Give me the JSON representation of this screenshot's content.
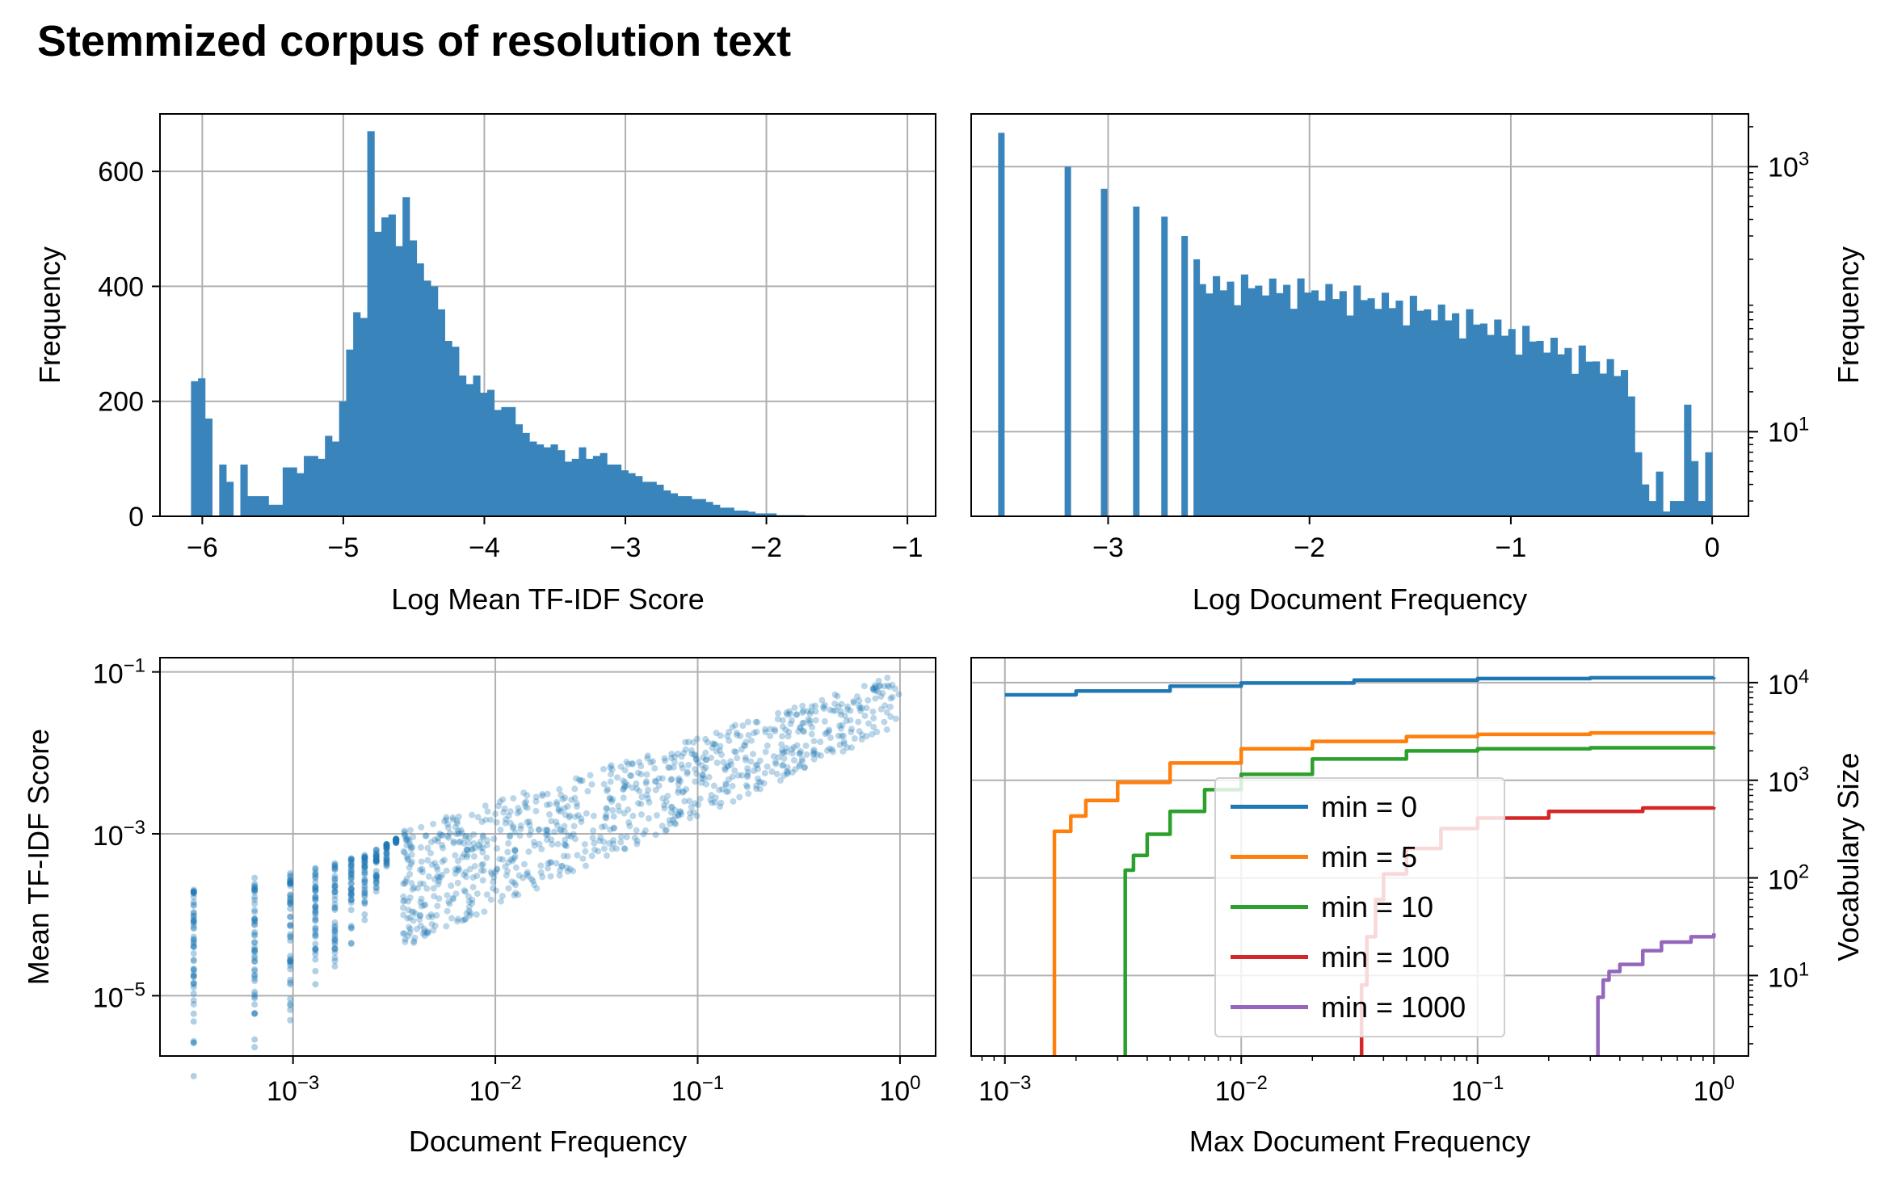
{
  "title": "Stemmized corpus of resolution text",
  "colors": {
    "hist": "#3a84bc",
    "scatter": "#1f77b4",
    "grid": "#b0b0b0"
  },
  "chart_data": [
    {
      "type": "bar",
      "subtype": "histogram",
      "xlabel": "Log Mean TF-IDF Score",
      "ylabel": "Frequency",
      "xlim": [
        -6.3,
        -0.8
      ],
      "ylim": [
        0,
        700
      ],
      "xticks": [
        "−6",
        "−5",
        "−4",
        "−3",
        "−2",
        "−1"
      ],
      "yticks": [
        "0",
        "200",
        "400",
        "600"
      ],
      "grid": true,
      "bin_start": -6.08,
      "bin_width": 0.05,
      "values": [
        235,
        240,
        170,
        0,
        90,
        60,
        0,
        90,
        35,
        35,
        35,
        20,
        20,
        85,
        85,
        75,
        105,
        105,
        100,
        140,
        130,
        200,
        290,
        355,
        345,
        670,
        495,
        520,
        525,
        470,
        555,
        480,
        440,
        410,
        400,
        360,
        305,
        295,
        245,
        230,
        245,
        215,
        220,
        185,
        190,
        190,
        160,
        145,
        130,
        125,
        120,
        125,
        115,
        95,
        100,
        120,
        100,
        105,
        110,
        90,
        90,
        80,
        75,
        70,
        60,
        60,
        55,
        45,
        40,
        35,
        35,
        30,
        30,
        25,
        20,
        15,
        15,
        10,
        10,
        8,
        5,
        5,
        5,
        2,
        2,
        2,
        2,
        1,
        1,
        1
      ]
    },
    {
      "type": "bar",
      "subtype": "histogram",
      "xlabel": "Log Document Frequency",
      "ylabel": "Frequency",
      "ylabel_side": "right",
      "yscale": "log",
      "xlim": [
        -3.68,
        0.18
      ],
      "ylim": [
        2.3,
        2500
      ],
      "xticks": [
        "−3",
        "−2",
        "−1",
        "0"
      ],
      "yticks": [
        "10^1",
        "10^3"
      ],
      "grid": true,
      "bin_start": -3.53,
      "bin_width": 0.0353,
      "values": [
        1800,
        0,
        0,
        0,
        0,
        0,
        0,
        0,
        0,
        1000,
        0,
        0,
        0,
        0,
        0,
        0,
        0,
        0,
        680,
        0,
        0,
        0,
        0,
        0,
        0,
        0,
        0,
        0,
        0,
        0,
        0,
        0,
        0,
        0,
        0,
        0,
        0,
        0,
        0,
        0,
        0,
        0,
        0,
        0,
        0,
        0,
        0,
        0,
        0,
        0,
        0,
        0,
        0,
        0,
        0,
        0,
        0,
        0,
        0,
        0,
        0,
        0,
        0,
        0,
        0,
        0,
        0,
        0,
        0,
        0,
        0,
        0,
        0,
        0,
        0,
        0,
        0,
        0,
        0,
        0,
        0,
        0,
        0,
        0,
        0,
        0,
        0,
        0,
        0,
        0,
        0,
        0,
        0,
        0,
        0,
        0,
        0,
        0,
        0,
        0
      ]
    },
    {
      "type": "scatter",
      "xlabel": "Document Frequency",
      "ylabel": "Mean TF-IDF Score",
      "xscale": "log",
      "yscale": "log",
      "xlim": [
        0.00022,
        1.5
      ],
      "ylim": [
        1.8e-06,
        0.15
      ],
      "xticks": [
        "10^−3",
        "10^−2",
        "10^−1",
        "10^0"
      ],
      "yticks": [
        "10^−5",
        "10^−3",
        "10^−1"
      ],
      "grid": true,
      "description_of_trend": "strong positive log-log correlation",
      "discrete_x_columns": [
        0.000323,
        0.000646,
        0.000969,
        0.00129,
        0.00161,
        0.00194,
        0.00226,
        0.00258,
        0.0029,
        0.00323
      ],
      "point_groups": [
        {
          "x": 0.000323,
          "y_min": 1e-06,
          "y_max": 0.00026
        },
        {
          "x": 0.000646,
          "y_min": 3e-06,
          "y_max": 0.00031
        },
        {
          "x": 0.000969,
          "y_min": 9e-06,
          "y_max": 0.0004
        },
        {
          "x": 0.00129,
          "y_min": 1.2e-05,
          "y_max": 0.00045
        },
        {
          "x": 0.00161,
          "y_min": 1.8e-05,
          "y_max": 0.00055
        },
        {
          "x": 0.01,
          "y_min": 0.00012,
          "y_max": 0.003
        },
        {
          "x": 0.1,
          "y_min": 0.0015,
          "y_max": 0.012
        },
        {
          "x": 1.0,
          "y_min": 0.03,
          "y_max": 0.09
        }
      ]
    },
    {
      "type": "line",
      "xlabel": "Max Document Frequency",
      "ylabel": "Vocabulary Size",
      "ylabel_side": "right",
      "xscale": "log",
      "yscale": "log",
      "xlim": [
        0.00072,
        1.4
      ],
      "ylim": [
        1.5,
        18000
      ],
      "xticks": [
        "10^−3",
        "10^−2",
        "10^−1",
        "10^0"
      ],
      "yticks": [
        "10^1",
        "10^2",
        "10^3",
        "10^4"
      ],
      "grid": true,
      "legend_position": "center",
      "series": [
        {
          "name": "min = 0",
          "color": "#1f77b4",
          "x": [
            0.001,
            0.002,
            0.005,
            0.01,
            0.03,
            0.1,
            0.3,
            1.0
          ],
          "y": [
            7500,
            8200,
            9200,
            9900,
            10600,
            11000,
            11200,
            11300
          ]
        },
        {
          "name": "min = 5",
          "color": "#ff7f0e",
          "x": [
            0.00162,
            0.00162,
            0.0019,
            0.0022,
            0.003,
            0.005,
            0.01,
            0.02,
            0.05,
            0.1,
            0.3,
            1.0
          ],
          "y": [
            1.5,
            300,
            430,
            620,
            950,
            1500,
            2100,
            2500,
            2800,
            2950,
            3050,
            3100
          ]
        },
        {
          "name": "min = 10",
          "color": "#2ca02c",
          "x": [
            0.00323,
            0.00323,
            0.0035,
            0.004,
            0.005,
            0.007,
            0.01,
            0.02,
            0.05,
            0.1,
            0.3,
            1.0
          ],
          "y": [
            1.5,
            120,
            170,
            280,
            480,
            800,
            1150,
            1650,
            2000,
            2100,
            2150,
            2200
          ]
        },
        {
          "name": "min = 100",
          "color": "#d62728",
          "x": [
            0.0323,
            0.0323,
            0.034,
            0.037,
            0.04,
            0.05,
            0.07,
            0.1,
            0.2,
            0.5,
            1.0
          ],
          "y": [
            1.5,
            8,
            25,
            60,
            110,
            200,
            320,
            410,
            480,
            520,
            530
          ]
        },
        {
          "name": "min = 1000",
          "color": "#9467bd",
          "x": [
            0.323,
            0.323,
            0.34,
            0.36,
            0.4,
            0.5,
            0.6,
            0.8,
            1.0
          ],
          "y": [
            1.5,
            6,
            9,
            11,
            13,
            18,
            22,
            25,
            27
          ]
        }
      ]
    }
  ]
}
